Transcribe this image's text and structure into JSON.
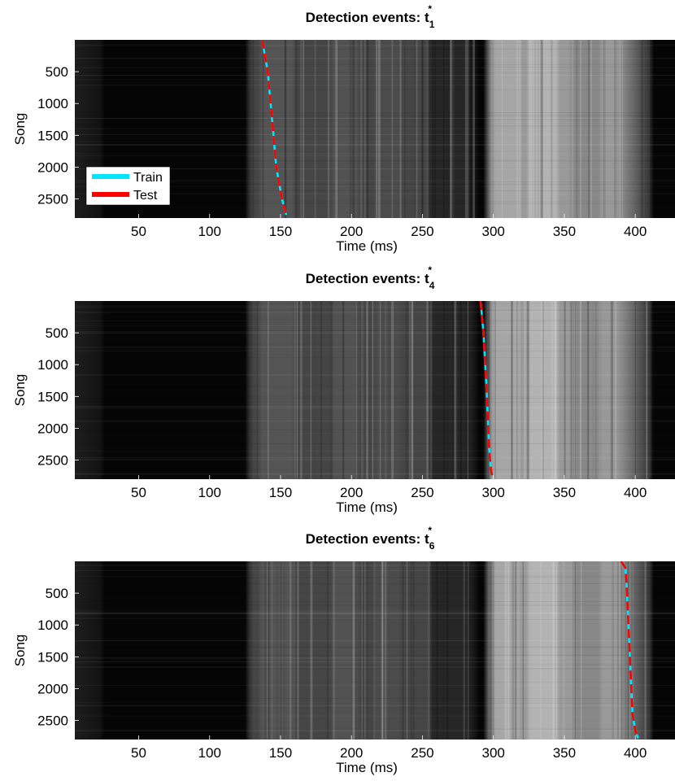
{
  "figure": {
    "panels": [
      {
        "title_prefix": "Detection events: ",
        "title_symbol": "t",
        "title_sub": "1",
        "title_sup": "*"
      },
      {
        "title_prefix": "Detection events: ",
        "title_symbol": "t",
        "title_sub": "4",
        "title_sup": "*"
      },
      {
        "title_prefix": "Detection events: ",
        "title_symbol": "t",
        "title_sub": "6",
        "title_sup": "*"
      }
    ]
  },
  "chart_data": [
    {
      "type": "heatmap",
      "title": "Detection events: t₁*",
      "xlabel": "Time (ms)",
      "ylabel": "Song",
      "xlim": [
        5,
        428
      ],
      "ylim": [
        2800,
        0
      ],
      "xticks": [
        50,
        100,
        150,
        200,
        250,
        300,
        350,
        400
      ],
      "yticks": [
        500,
        1000,
        1500,
        2000,
        2500
      ],
      "colormap": "gray",
      "grid": false,
      "legend": {
        "position": "lower-left",
        "entries": [
          {
            "name": "Train",
            "color": "#00e5ff"
          },
          {
            "name": "Test",
            "color": "#ff0000"
          }
        ]
      },
      "series": [
        {
          "name": "Train",
          "color": "#00e5ff",
          "x": [
            137,
            139,
            141,
            142,
            143,
            144,
            145,
            146,
            147,
            149,
            151,
            154
          ],
          "y": [
            0,
            250,
            500,
            750,
            1000,
            1250,
            1500,
            1750,
            2000,
            2250,
            2500,
            2750
          ]
        },
        {
          "name": "Test",
          "color": "#ff0000",
          "x": [
            137,
            139,
            141,
            142,
            143,
            144,
            145,
            146,
            147,
            149,
            151,
            154
          ],
          "y": [
            0,
            250,
            500,
            750,
            1000,
            1250,
            1500,
            1750,
            2000,
            2250,
            2500,
            2750
          ]
        }
      ]
    },
    {
      "type": "heatmap",
      "title": "Detection events: t₄*",
      "xlabel": "Time (ms)",
      "ylabel": "Song",
      "xlim": [
        5,
        428
      ],
      "ylim": [
        2800,
        0
      ],
      "xticks": [
        50,
        100,
        150,
        200,
        250,
        300,
        350,
        400
      ],
      "yticks": [
        500,
        1000,
        1500,
        2000,
        2500
      ],
      "colormap": "gray",
      "grid": false,
      "series": [
        {
          "name": "Train",
          "color": "#00e5ff",
          "x": [
            291,
            292,
            293,
            294,
            295,
            296,
            297,
            298,
            299
          ],
          "y": [
            0,
            250,
            500,
            900,
            1300,
            1800,
            2300,
            2600,
            2750
          ]
        },
        {
          "name": "Test",
          "color": "#ff0000",
          "x": [
            291,
            292,
            293,
            294,
            295,
            296,
            297,
            298,
            299
          ],
          "y": [
            0,
            250,
            500,
            900,
            1300,
            1800,
            2300,
            2600,
            2750
          ]
        }
      ]
    },
    {
      "type": "heatmap",
      "title": "Detection events: t₆*",
      "xlabel": "Time (ms)",
      "ylabel": "Song",
      "xlim": [
        5,
        428
      ],
      "ylim": [
        2800,
        0
      ],
      "xticks": [
        50,
        100,
        150,
        200,
        250,
        300,
        350,
        400
      ],
      "yticks": [
        500,
        1000,
        1500,
        2000,
        2500
      ],
      "colormap": "gray",
      "grid": false,
      "series": [
        {
          "name": "Train",
          "color": "#00e5ff",
          "x": [
            390,
            393,
            394,
            395,
            396,
            397,
            398,
            400,
            402
          ],
          "y": [
            0,
            100,
            400,
            900,
            1400,
            1900,
            2400,
            2650,
            2780
          ]
        },
        {
          "name": "Test",
          "color": "#ff0000",
          "x": [
            390,
            393,
            394,
            395,
            396,
            397,
            398,
            400,
            402
          ],
          "y": [
            0,
            100,
            400,
            900,
            1400,
            1900,
            2400,
            2650,
            2780
          ]
        }
      ]
    }
  ]
}
